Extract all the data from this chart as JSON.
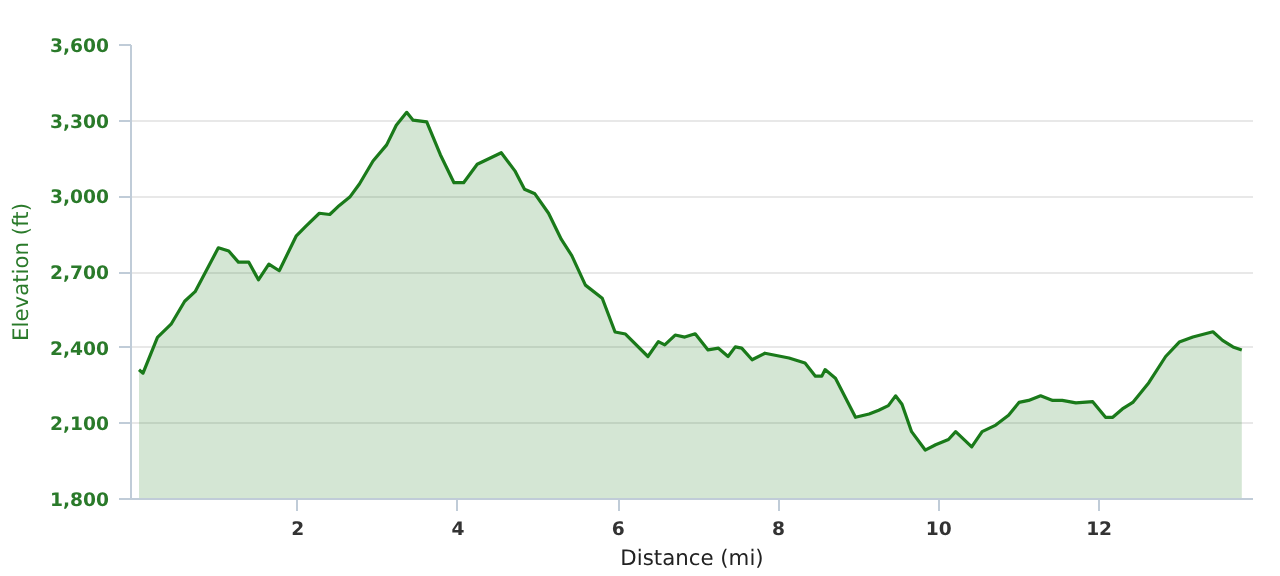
{
  "chart_data": {
    "type": "area",
    "xlabel": "Distance (mi)",
    "ylabel": "Elevation (ft)",
    "x": [
      0.02,
      0.07,
      0.25,
      0.42,
      0.59,
      0.72,
      1.01,
      1.14,
      1.26,
      1.39,
      1.51,
      1.64,
      1.77,
      1.98,
      2.1,
      2.27,
      2.4,
      2.52,
      2.65,
      2.77,
      2.94,
      3.11,
      3.23,
      3.36,
      3.44,
      3.61,
      3.78,
      3.95,
      4.07,
      4.24,
      4.41,
      4.54,
      4.71,
      4.83,
      4.96,
      5.13,
      5.29,
      5.42,
      5.59,
      5.8,
      5.96,
      6.09,
      6.37,
      6.5,
      6.58,
      6.71,
      6.83,
      6.96,
      7.12,
      7.25,
      7.37,
      7.46,
      7.54,
      7.67,
      7.83,
      8.13,
      8.33,
      8.46,
      8.54,
      8.58,
      8.71,
      8.96,
      9.13,
      9.25,
      9.37,
      9.46,
      9.54,
      9.66,
      9.83,
      9.96,
      10.12,
      10.21,
      10.41,
      10.54,
      10.71,
      10.87,
      11.0,
      11.12,
      11.27,
      11.42,
      11.54,
      11.71,
      11.92,
      12.08,
      12.17,
      12.29,
      12.42,
      12.62,
      12.83,
      13.0,
      13.17,
      13.42,
      13.54,
      13.67,
      13.78
    ],
    "series": [
      {
        "color": "#1a7a1a",
        "values": [
          2312,
          2299,
          2441,
          2493,
          2584,
          2622,
          2796,
          2783,
          2739,
          2739,
          2669,
          2731,
          2705,
          2842,
          2881,
          2933,
          2928,
          2964,
          2997,
          3049,
          3140,
          3204,
          3282,
          3333,
          3302,
          3295,
          3165,
          3054,
          3054,
          3127,
          3153,
          3173,
          3101,
          3028,
          3010,
          2933,
          2829,
          2765,
          2648,
          2596,
          2462,
          2454,
          2365,
          2424,
          2411,
          2450,
          2442,
          2455,
          2391,
          2398,
          2365,
          2403,
          2398,
          2352,
          2378,
          2359,
          2339,
          2287,
          2287,
          2313,
          2279,
          2124,
          2137,
          2152,
          2170,
          2209,
          2176,
          2067,
          1994,
          2015,
          2036,
          2067,
          2007,
          2067,
          2093,
          2132,
          2183,
          2191,
          2209,
          2191,
          2191,
          2181,
          2186,
          2124,
          2124,
          2157,
          2183,
          2261,
          2365,
          2422,
          2442,
          2463,
          2429,
          2403,
          2391
        ]
      }
    ],
    "xlim": [
      -0.08,
      13.92
    ],
    "xticks": [
      2,
      4,
      6,
      8,
      10,
      12
    ],
    "ylim": [
      1800,
      3600
    ],
    "yticks": [
      {
        "value": 1800,
        "label": "1,800"
      },
      {
        "value": 2100,
        "label": "2,100"
      },
      {
        "value": 2400,
        "label": "2,400"
      },
      {
        "value": 2700,
        "label": "2,700"
      },
      {
        "value": 3000,
        "label": "3,000"
      },
      {
        "value": 3300,
        "label": "3,300"
      },
      {
        "value": 3600,
        "label": "3,600"
      }
    ],
    "grid": "y"
  }
}
